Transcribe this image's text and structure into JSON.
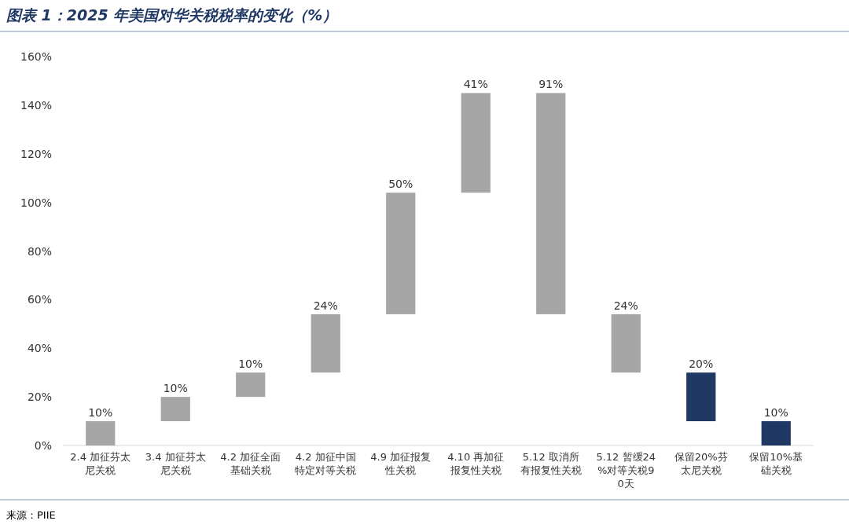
{
  "chart_data": {
    "type": "bar",
    "title": "图表 1：2025 年美国对华关税税率的变化（%）",
    "annotations": [
      "来源：PIIE"
    ],
    "categories": [
      "2.4 加征芬太尼关税",
      "3.4 加征芬太尼关税",
      "4.2 加征全面基础关税",
      "4.2 加征中国特定对等关税",
      "4.9 加征报复性关税",
      "4.10 再加征报复性关税",
      "5.12 取消所有报复性关税",
      "5.12 暂缓24%对等关税90天",
      "保留20%芬太尼关税",
      "保留10%基础关税"
    ],
    "values": [
      10,
      10,
      10,
      24,
      50,
      41,
      -91,
      -24,
      20,
      10
    ],
    "base": [
      0,
      10,
      20,
      30,
      54,
      104,
      145,
      54,
      10,
      0
    ],
    "value_labels": [
      "10%",
      "10%",
      "10%",
      "24%",
      "50%",
      "41%",
      "91%",
      "24%",
      "20%",
      "10%"
    ],
    "colors": [
      "#a6a6a6",
      "#a6a6a6",
      "#a6a6a6",
      "#a6a6a6",
      "#a6a6a6",
      "#a6a6a6",
      "#a6a6a6",
      "#a6a6a6",
      "#1f3864",
      "#1f3864"
    ],
    "ylim": [
      0,
      160
    ],
    "yticks": [
      {
        "value": 0,
        "label": "0%"
      },
      {
        "value": 20,
        "label": "20%"
      },
      {
        "value": 40,
        "label": "40%"
      },
      {
        "value": 60,
        "label": "60%"
      },
      {
        "value": 80,
        "label": "80%"
      },
      {
        "value": 100,
        "label": "100%"
      },
      {
        "value": 120,
        "label": "120%"
      },
      {
        "value": 140,
        "label": "140%"
      },
      {
        "value": 160,
        "label": "160%"
      }
    ]
  }
}
